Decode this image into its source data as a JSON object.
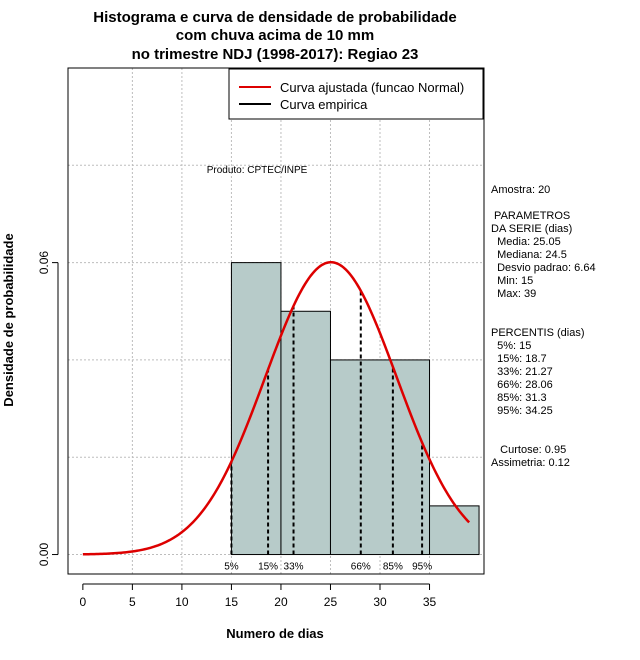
{
  "chart_data": {
    "type": "bar",
    "title_lines": [
      "Histograma e curva de densidade de probabilidade",
      "com chuva acima de 10 mm",
      "no trimestre NDJ (1998-2017): Regiao 23"
    ],
    "xlabel": "Numero de dias",
    "ylabel": "Densidade de probabilidade",
    "xlim": [
      -1.5,
      40.5
    ],
    "ylim": [
      -0.004,
      0.1
    ],
    "x_ticks": [
      0,
      5,
      10,
      15,
      20,
      25,
      30,
      35
    ],
    "x_tick_labels": [
      "0",
      "5",
      "10",
      "15",
      "20",
      "25",
      "30",
      "35"
    ],
    "y_ticks": [
      0.0,
      0.06
    ],
    "y_tick_labels": [
      "0.00",
      "0.06"
    ],
    "grid": true,
    "histogram": {
      "bins": [
        {
          "x0": 15,
          "x1": 20,
          "density": 0.06
        },
        {
          "x0": 20,
          "x1": 25,
          "density": 0.05
        },
        {
          "x0": 25,
          "x1": 35,
          "density": 0.04
        },
        {
          "x0": 35,
          "x1": 40,
          "density": 0.01
        }
      ],
      "fill": "#b7cbc9",
      "edge": "#000000"
    },
    "fitted_curve": {
      "name": "Curva ajustada (funcao Normal)",
      "distribution": "normal",
      "mean": 25.05,
      "sd": 6.64,
      "x_range": [
        0,
        39
      ],
      "color": "#dd0000"
    },
    "empirical_curve": {
      "name": "Curva empirica",
      "color": "#000000"
    },
    "percentile_markers": [
      {
        "x": 15,
        "label": "5%"
      },
      {
        "x": 18.7,
        "label": "15%"
      },
      {
        "x": 21.27,
        "label": "33%"
      },
      {
        "x": 28.06,
        "label": "66%"
      },
      {
        "x": 31.3,
        "label": "85%"
      },
      {
        "x": 34.25,
        "label": "95%"
      }
    ],
    "legend_position": "top-right",
    "annotation": "Produto: CPTEC/INPE"
  },
  "side_panel": {
    "lines": [
      "Amostra: 20",
      "",
      " PARAMETROS",
      "DA SERIE (dias)",
      "  Media: 25.05",
      "  Mediana: 24.5",
      "  Desvio padrao: 6.64",
      "  Min: 15",
      "  Max: 39",
      "",
      "",
      "PERCENTIS (dias)",
      "  5%: 15",
      "  15%: 18.7",
      "  33%: 21.27",
      "  66%: 28.06",
      "  85%: 31.3",
      "  95%: 34.25",
      "",
      "",
      "   Curtose: 0.95",
      "Assimetria: 0.12"
    ]
  }
}
